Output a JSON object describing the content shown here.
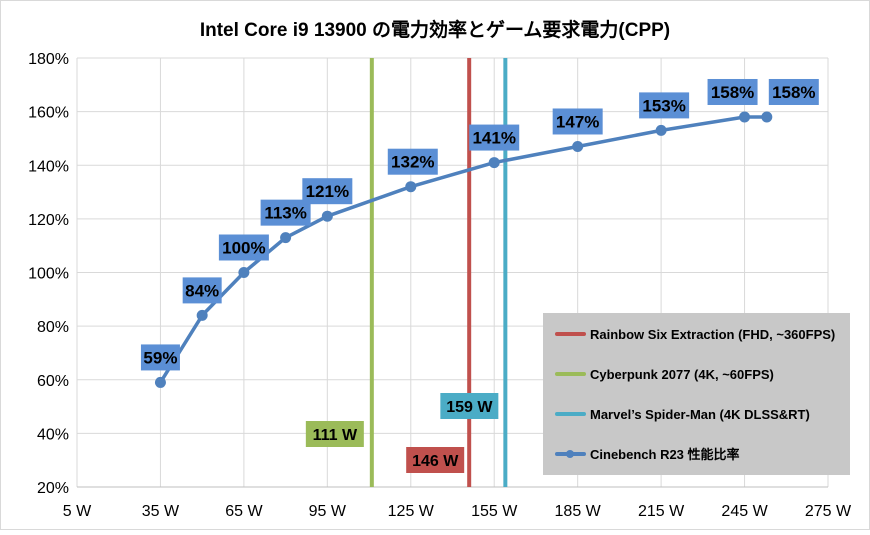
{
  "chart_data": {
    "type": "line",
    "title": "Intel Core i9 13900 の電力効率とゲーム要求電力(CPP)",
    "xlabel": "",
    "ylabel": "",
    "xlim": [
      5,
      275
    ],
    "ylim": [
      20,
      180
    ],
    "x_ticks": [
      "5 W",
      "35 W",
      "65 W",
      "95 W",
      "125 W",
      "155 W",
      "185 W",
      "215 W",
      "245 W",
      "275 W"
    ],
    "x_tick_values": [
      5,
      35,
      65,
      95,
      125,
      155,
      185,
      215,
      245,
      275
    ],
    "y_ticks": [
      "20%",
      "40%",
      "60%",
      "80%",
      "100%",
      "120%",
      "140%",
      "160%",
      "180%"
    ],
    "y_tick_values": [
      20,
      40,
      60,
      80,
      100,
      120,
      140,
      160,
      180
    ],
    "grid": true,
    "legend_position": "bottom-right",
    "series": [
      {
        "name": "Cinebench R23 性能比率",
        "type": "line",
        "color": "#4f81bd",
        "x": [
          35,
          50,
          65,
          80,
          95,
          125,
          155,
          185,
          215,
          245,
          253
        ],
        "values": [
          59,
          84,
          100,
          113,
          121,
          132,
          141,
          147,
          153,
          158,
          158
        ],
        "labels": [
          "59%",
          "84%",
          "100%",
          "113%",
          "121%",
          "132%",
          "141%",
          "147%",
          "153%",
          "158%",
          "158%"
        ]
      }
    ],
    "reference_lines": [
      {
        "name": "Rainbow Six Extraction (FHD, ~360FPS)",
        "x": 146,
        "label": "146 W",
        "color": "#c0504d"
      },
      {
        "name": "Cyberpunk 2077 (4K, ~60FPS)",
        "x": 111,
        "label": "111 W",
        "color": "#9bbb59"
      },
      {
        "name": "Marvel’s Spider-Man (4K DLSS&RT)",
        "x": 159,
        "label": "159 W",
        "color": "#4bacc6"
      }
    ],
    "legend": [
      "Rainbow Six Extraction (FHD, ~360FPS)",
      "Cyberpunk 2077 (4K, ~60FPS)",
      "Marvel’s Spider-Man (4K DLSS&RT)",
      "Cinebench R23 性能比率"
    ],
    "label_fill": "#5b8fd5"
  }
}
